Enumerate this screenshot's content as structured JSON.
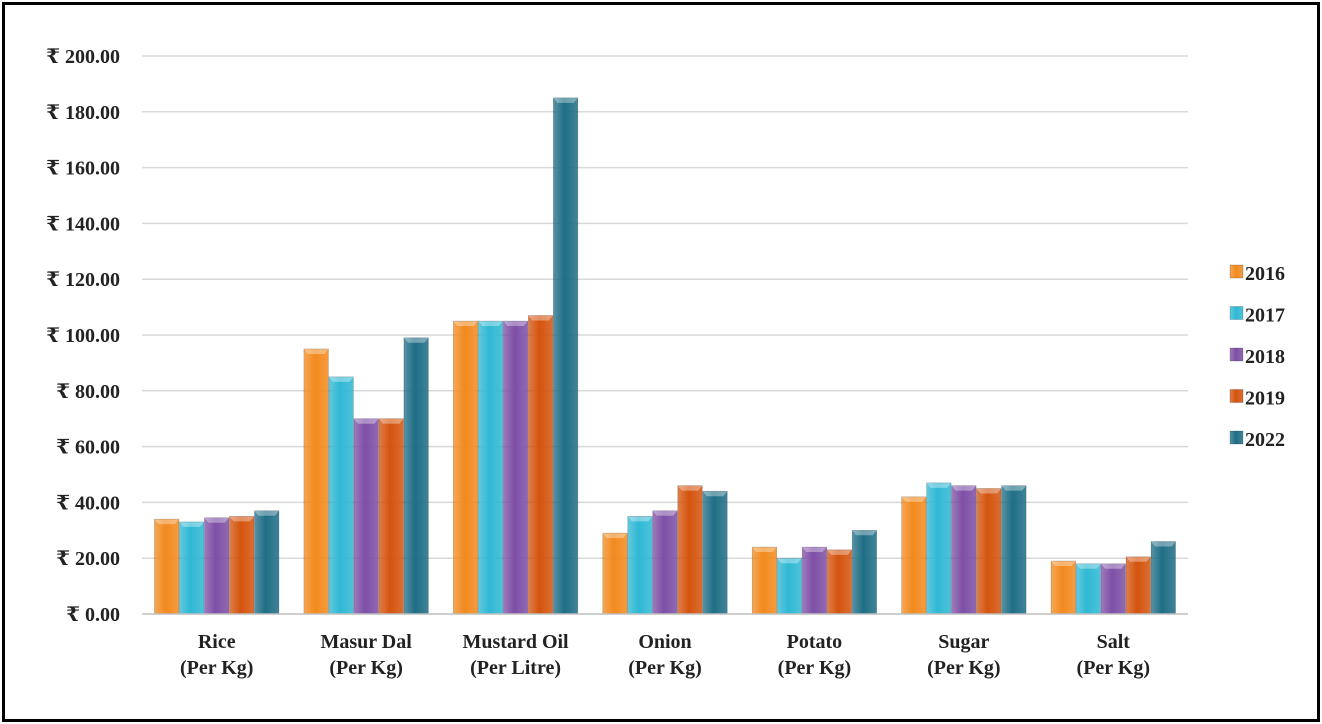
{
  "chart_data": {
    "type": "bar",
    "categories": [
      [
        "Rice",
        "(Per Kg)"
      ],
      [
        "Masur Dal",
        "(Per Kg)"
      ],
      [
        "Mustard Oil",
        "(Per Litre)"
      ],
      [
        "Onion",
        "(Per Kg)"
      ],
      [
        "Potato",
        "(Per Kg)"
      ],
      [
        "Sugar",
        "(Per Kg)"
      ],
      [
        "Salt",
        "(Per Kg)"
      ]
    ],
    "series": [
      {
        "name": "2016",
        "color": "#F28A1E",
        "values": [
          34,
          95,
          105,
          29,
          24,
          42,
          19
        ]
      },
      {
        "name": "2017",
        "color": "#2FB8D4",
        "values": [
          33,
          85,
          105,
          35,
          20,
          47,
          18
        ]
      },
      {
        "name": "2018",
        "color": "#7E4FA6",
        "values": [
          34.5,
          70,
          105,
          37,
          24,
          46,
          18
        ]
      },
      {
        "name": "2019",
        "color": "#D4540E",
        "values": [
          35,
          70,
          107,
          46,
          23,
          45,
          20.5
        ]
      },
      {
        "name": "2022",
        "color": "#1F6E86",
        "values": [
          37,
          99,
          185,
          44,
          30,
          46,
          26
        ]
      }
    ],
    "ylim": [
      0,
      200
    ],
    "yticks": [
      0,
      20,
      40,
      60,
      80,
      100,
      120,
      140,
      160,
      180,
      200
    ],
    "ytick_labels": [
      "₹ 0.00",
      "₹ 20.00",
      "₹ 40.00",
      "₹ 60.00",
      "₹ 80.00",
      "₹ 100.00",
      "₹ 120.00",
      "₹ 140.00",
      "₹ 160.00",
      "₹ 180.00",
      "₹ 200.00"
    ],
    "title": "",
    "xlabel": "",
    "ylabel": "",
    "grid": true,
    "legend_position": "right"
  }
}
